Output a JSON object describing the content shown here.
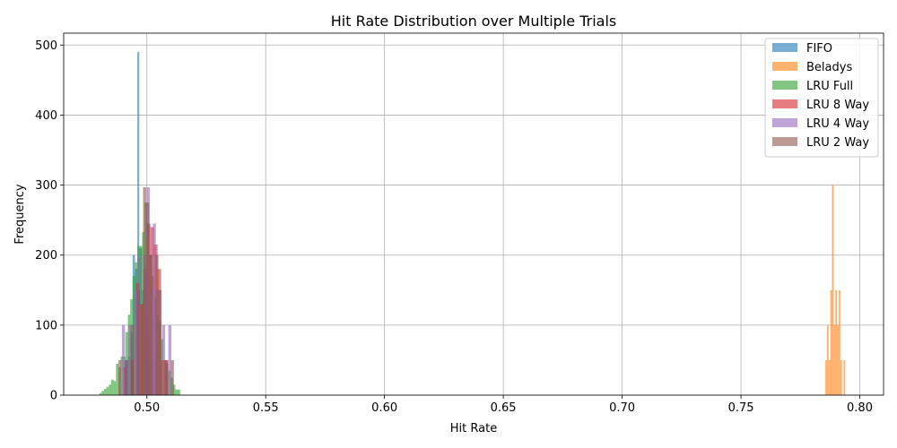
{
  "chart_data": {
    "type": "histogram",
    "title": "Hit Rate Distribution over Multiple Trials",
    "xlabel": "Hit Rate",
    "ylabel": "Frequency",
    "xlim": [
      0.465,
      0.81
    ],
    "ylim": [
      0,
      517
    ],
    "x_ticks": [
      0.5,
      0.55,
      0.6,
      0.65,
      0.7,
      0.75,
      0.8
    ],
    "x_tick_labels": [
      "0.50",
      "0.55",
      "0.60",
      "0.65",
      "0.70",
      "0.75",
      "0.80"
    ],
    "y_ticks": [
      0,
      100,
      200,
      300,
      400,
      500
    ],
    "y_tick_labels": [
      "0",
      "100",
      "200",
      "300",
      "400",
      "500"
    ],
    "grid": true,
    "legend_position": "top-right",
    "bar_alpha": 0.6,
    "series": [
      {
        "name": "FIFO",
        "color": "#1f77b4",
        "bins": [
          {
            "x0": 0.491,
            "x1": 0.492,
            "y": 50
          },
          {
            "x0": 0.492,
            "x1": 0.493,
            "y": 55
          },
          {
            "x0": 0.493,
            "x1": 0.494,
            "y": 90
          },
          {
            "x0": 0.494,
            "x1": 0.495,
            "y": 200
          },
          {
            "x0": 0.495,
            "x1": 0.496,
            "y": 180
          },
          {
            "x0": 0.496,
            "x1": 0.4968,
            "y": 490
          },
          {
            "x0": 0.4968,
            "x1": 0.498,
            "y": 210
          },
          {
            "x0": 0.498,
            "x1": 0.499,
            "y": 150
          },
          {
            "x0": 0.499,
            "x1": 0.5,
            "y": 120
          },
          {
            "x0": 0.5,
            "x1": 0.501,
            "y": 90
          },
          {
            "x0": 0.501,
            "x1": 0.502,
            "y": 50
          }
        ]
      },
      {
        "name": "Beladys",
        "color": "#ff7f0e",
        "bins": [
          {
            "x0": 0.7855,
            "x1": 0.7862,
            "y": 50
          },
          {
            "x0": 0.7862,
            "x1": 0.7869,
            "y": 100
          },
          {
            "x0": 0.7869,
            "x1": 0.7876,
            "y": 50
          },
          {
            "x0": 0.7876,
            "x1": 0.7883,
            "y": 150
          },
          {
            "x0": 0.7883,
            "x1": 0.789,
            "y": 300
          },
          {
            "x0": 0.789,
            "x1": 0.7897,
            "y": 100
          },
          {
            "x0": 0.7897,
            "x1": 0.7904,
            "y": 150
          },
          {
            "x0": 0.7904,
            "x1": 0.7911,
            "y": 100
          },
          {
            "x0": 0.7911,
            "x1": 0.7918,
            "y": 150
          },
          {
            "x0": 0.7918,
            "x1": 0.7925,
            "y": 50
          },
          {
            "x0": 0.7925,
            "x1": 0.7932,
            "y": 0
          },
          {
            "x0": 0.7932,
            "x1": 0.7939,
            "y": 50
          }
        ]
      },
      {
        "name": "LRU Full",
        "color": "#2ca02c",
        "bins": [
          {
            "x0": 0.48,
            "x1": 0.481,
            "y": 3
          },
          {
            "x0": 0.481,
            "x1": 0.482,
            "y": 6
          },
          {
            "x0": 0.482,
            "x1": 0.483,
            "y": 9
          },
          {
            "x0": 0.483,
            "x1": 0.484,
            "y": 12
          },
          {
            "x0": 0.484,
            "x1": 0.485,
            "y": 15
          },
          {
            "x0": 0.485,
            "x1": 0.486,
            "y": 22
          },
          {
            "x0": 0.486,
            "x1": 0.487,
            "y": 20
          },
          {
            "x0": 0.487,
            "x1": 0.488,
            "y": 45
          },
          {
            "x0": 0.488,
            "x1": 0.489,
            "y": 40
          },
          {
            "x0": 0.489,
            "x1": 0.49,
            "y": 55
          },
          {
            "x0": 0.49,
            "x1": 0.491,
            "y": 55
          },
          {
            "x0": 0.491,
            "x1": 0.492,
            "y": 90
          },
          {
            "x0": 0.492,
            "x1": 0.493,
            "y": 115
          },
          {
            "x0": 0.493,
            "x1": 0.494,
            "y": 137
          },
          {
            "x0": 0.494,
            "x1": 0.495,
            "y": 170
          },
          {
            "x0": 0.495,
            "x1": 0.496,
            "y": 190
          },
          {
            "x0": 0.496,
            "x1": 0.497,
            "y": 213
          },
          {
            "x0": 0.497,
            "x1": 0.498,
            "y": 213
          },
          {
            "x0": 0.498,
            "x1": 0.499,
            "y": 233
          },
          {
            "x0": 0.499,
            "x1": 0.5,
            "y": 275
          },
          {
            "x0": 0.5,
            "x1": 0.501,
            "y": 245
          },
          {
            "x0": 0.501,
            "x1": 0.502,
            "y": 200
          },
          {
            "x0": 0.502,
            "x1": 0.503,
            "y": 170
          },
          {
            "x0": 0.503,
            "x1": 0.504,
            "y": 140
          },
          {
            "x0": 0.504,
            "x1": 0.505,
            "y": 115
          },
          {
            "x0": 0.505,
            "x1": 0.506,
            "y": 107
          },
          {
            "x0": 0.506,
            "x1": 0.507,
            "y": 80
          },
          {
            "x0": 0.507,
            "x1": 0.508,
            "y": 50
          },
          {
            "x0": 0.508,
            "x1": 0.509,
            "y": 45
          },
          {
            "x0": 0.509,
            "x1": 0.51,
            "y": 35
          },
          {
            "x0": 0.51,
            "x1": 0.511,
            "y": 25
          },
          {
            "x0": 0.511,
            "x1": 0.512,
            "y": 15
          },
          {
            "x0": 0.512,
            "x1": 0.514,
            "y": 8
          }
        ]
      },
      {
        "name": "LRU 8 Way",
        "color": "#d62728",
        "bins": [
          {
            "x0": 0.49,
            "x1": 0.4915,
            "y": 40
          },
          {
            "x0": 0.493,
            "x1": 0.4945,
            "y": 50
          },
          {
            "x0": 0.4955,
            "x1": 0.497,
            "y": 160
          },
          {
            "x0": 0.497,
            "x1": 0.4985,
            "y": 130
          },
          {
            "x0": 0.4985,
            "x1": 0.5,
            "y": 180
          },
          {
            "x0": 0.5,
            "x1": 0.5015,
            "y": 245
          },
          {
            "x0": 0.5015,
            "x1": 0.503,
            "y": 240
          },
          {
            "x0": 0.503,
            "x1": 0.5045,
            "y": 215
          },
          {
            "x0": 0.5045,
            "x1": 0.506,
            "y": 180
          },
          {
            "x0": 0.506,
            "x1": 0.5075,
            "y": 50
          },
          {
            "x0": 0.5075,
            "x1": 0.509,
            "y": 50
          }
        ]
      },
      {
        "name": "LRU 4 Way",
        "color": "#9467bd",
        "bins": [
          {
            "x0": 0.4895,
            "x1": 0.4908,
            "y": 100
          },
          {
            "x0": 0.4908,
            "x1": 0.4921,
            "y": 50
          },
          {
            "x0": 0.4921,
            "x1": 0.4934,
            "y": 100
          },
          {
            "x0": 0.4947,
            "x1": 0.496,
            "y": 150
          },
          {
            "x0": 0.496,
            "x1": 0.4973,
            "y": 200
          },
          {
            "x0": 0.4986,
            "x1": 0.4999,
            "y": 200
          },
          {
            "x0": 0.4999,
            "x1": 0.5012,
            "y": 297
          },
          {
            "x0": 0.5012,
            "x1": 0.5025,
            "y": 150
          },
          {
            "x0": 0.5025,
            "x1": 0.5038,
            "y": 245
          },
          {
            "x0": 0.5038,
            "x1": 0.5051,
            "y": 150
          },
          {
            "x0": 0.5064,
            "x1": 0.5077,
            "y": 100
          },
          {
            "x0": 0.509,
            "x1": 0.5103,
            "y": 100
          }
        ]
      },
      {
        "name": "LRU 2 Way",
        "color": "#8c564b",
        "bins": [
          {
            "x0": 0.488,
            "x1": 0.4893,
            "y": 50
          },
          {
            "x0": 0.4906,
            "x1": 0.4919,
            "y": 50
          },
          {
            "x0": 0.4932,
            "x1": 0.4945,
            "y": 100
          },
          {
            "x0": 0.4958,
            "x1": 0.4971,
            "y": 150
          },
          {
            "x0": 0.4984,
            "x1": 0.4997,
            "y": 297
          },
          {
            "x0": 0.4997,
            "x1": 0.501,
            "y": 275
          },
          {
            "x0": 0.501,
            "x1": 0.5023,
            "y": 200
          },
          {
            "x0": 0.5036,
            "x1": 0.5049,
            "y": 200
          },
          {
            "x0": 0.5049,
            "x1": 0.5062,
            "y": 150
          },
          {
            "x0": 0.5075,
            "x1": 0.5088,
            "y": 50
          },
          {
            "x0": 0.5101,
            "x1": 0.5114,
            "y": 50
          }
        ]
      }
    ]
  }
}
